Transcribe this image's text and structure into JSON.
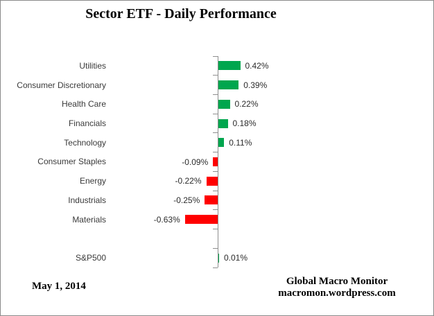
{
  "title": "Sector ETF - Daily Performance",
  "footer": {
    "date": "May 1, 2014",
    "brand_line1": "Global Macro Monitor",
    "brand_line2": "macromon.wordpress.com"
  },
  "chart_data": {
    "type": "bar",
    "orientation": "horizontal",
    "title": "Sector ETF - Daily Performance",
    "categories": [
      "Utilities",
      "Consumer Discretionary",
      "Health Care",
      "Financials",
      "Technology",
      "Consumer Staples",
      "Energy",
      "Industrials",
      "Materials",
      "",
      "S&P500"
    ],
    "values": [
      0.42,
      0.39,
      0.22,
      0.18,
      0.11,
      -0.09,
      -0.22,
      -0.25,
      -0.63,
      null,
      0.01
    ],
    "value_labels": [
      "0.42%",
      "0.39%",
      "0.22%",
      "0.18%",
      "0.11%",
      "-0.09%",
      "-0.22%",
      "-0.25%",
      "-0.63%",
      "",
      "0.01%"
    ],
    "xlabel": "",
    "ylabel": "",
    "xlim": [
      -0.8,
      0.8
    ],
    "grid": false,
    "legend": false,
    "colors": {
      "positive": "#00a64e",
      "negative": "#ff0000",
      "axis": "#8e8e8e",
      "label_text": "#2b2b2b"
    }
  }
}
